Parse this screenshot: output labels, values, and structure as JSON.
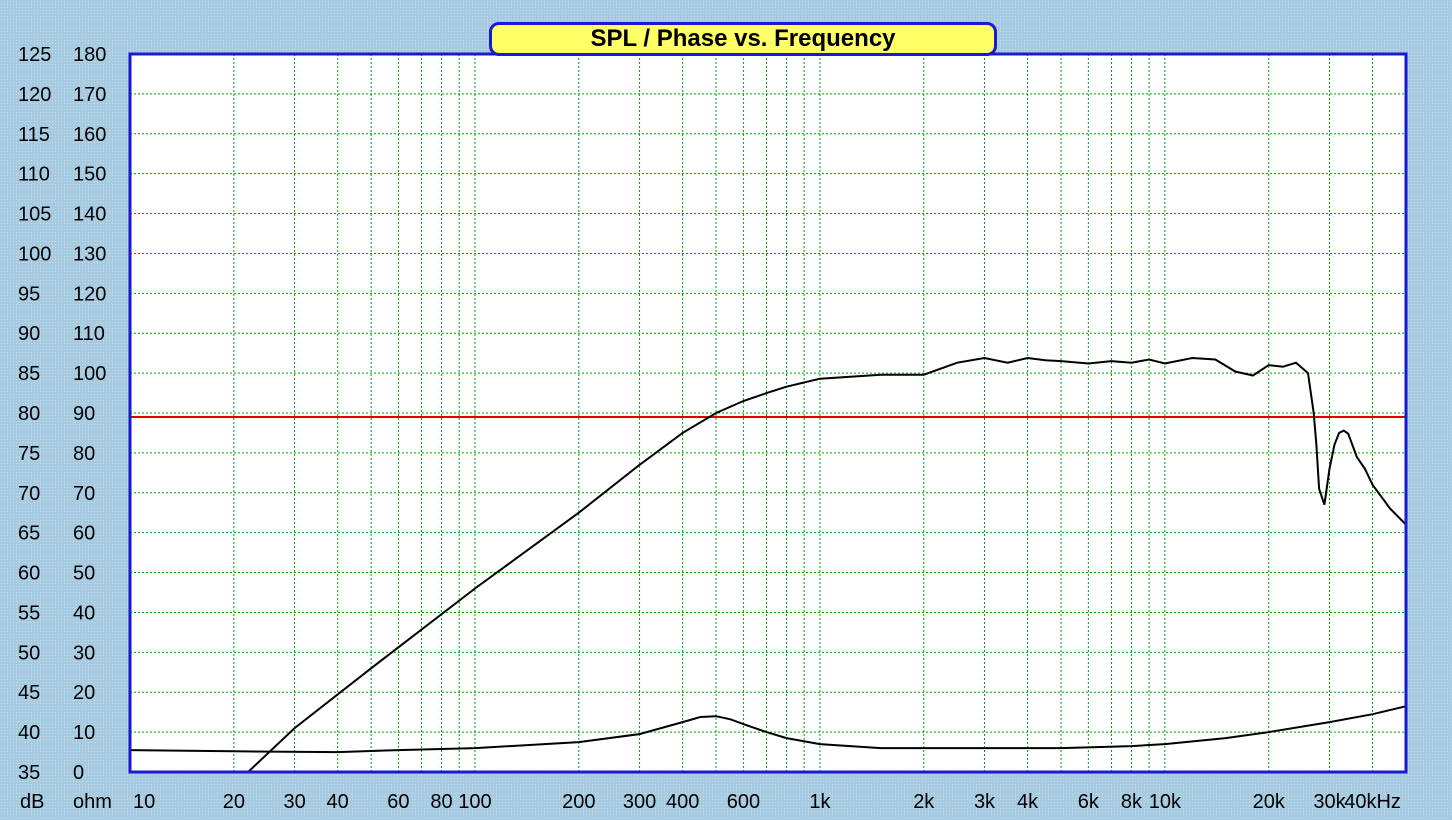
{
  "chart_data": {
    "type": "line",
    "title": "SPL / Phase vs. Frequency",
    "x_scale": "log",
    "xlim": [
      10,
      50000
    ],
    "x_unit_label": "kHz",
    "x_tick_labels": [
      {
        "v": 10,
        "t": "10"
      },
      {
        "v": 20,
        "t": "20"
      },
      {
        "v": 30,
        "t": "30"
      },
      {
        "v": 40,
        "t": "40"
      },
      {
        "v": 60,
        "t": "60"
      },
      {
        "v": 80,
        "t": "80"
      },
      {
        "v": 100,
        "t": "100"
      },
      {
        "v": 200,
        "t": "200"
      },
      {
        "v": 300,
        "t": "300"
      },
      {
        "v": 400,
        "t": "400"
      },
      {
        "v": 600,
        "t": "600"
      },
      {
        "v": 1000,
        "t": "1k"
      },
      {
        "v": 2000,
        "t": "2k"
      },
      {
        "v": 3000,
        "t": "3k"
      },
      {
        "v": 4000,
        "t": "4k"
      },
      {
        "v": 6000,
        "t": "6k"
      },
      {
        "v": 8000,
        "t": "8k"
      },
      {
        "v": 10000,
        "t": "10k"
      },
      {
        "v": 20000,
        "t": "20k"
      },
      {
        "v": 30000,
        "t": "30k"
      },
      {
        "v": 40000,
        "t": "40k"
      }
    ],
    "y_left": {
      "unit_label": "dB",
      "lim": [
        35,
        125
      ],
      "ticks": [
        125,
        120,
        115,
        110,
        105,
        100,
        95,
        90,
        85,
        80,
        75,
        70,
        65,
        60,
        55,
        50,
        45,
        40,
        35
      ]
    },
    "y_right": {
      "unit_label": "ohm",
      "lim": [
        0,
        180
      ],
      "ticks": [
        180,
        170,
        160,
        150,
        140,
        130,
        120,
        110,
        100,
        90,
        80,
        70,
        60,
        50,
        40,
        30,
        20,
        10,
        0
      ]
    },
    "grid": true,
    "reference_line_db": 79.5,
    "series": [
      {
        "axis": "dB",
        "x": [
          22,
          30,
          50,
          100,
          200,
          300,
          400,
          500,
          600,
          700,
          800,
          1000,
          1500,
          2000,
          2500,
          3000,
          3500,
          4000,
          4500,
          5000,
          6000,
          7000,
          8000,
          9000,
          10000,
          12000,
          14000,
          16000,
          18000,
          20000,
          22000,
          24000,
          26000,
          27000,
          27500,
          28000,
          29000,
          30000,
          31000,
          32000,
          33000,
          34000,
          36000,
          38000,
          40000,
          45000,
          50000
        ],
        "y": [
          35,
          40.5,
          48,
          58,
          67.5,
          73.5,
          77.5,
          80,
          81.5,
          82.5,
          83.3,
          84.3,
          84.8,
          84.8,
          86.3,
          86.9,
          86.3,
          86.9,
          86.6,
          86.5,
          86.2,
          86.5,
          86.3,
          86.7,
          86.2,
          86.9,
          86.7,
          85.2,
          84.7,
          86.0,
          85.8,
          86.3,
          85.0,
          80.0,
          76.0,
          70.5,
          68.5,
          73.0,
          76.0,
          77.5,
          77.8,
          77.4,
          74.5,
          73.0,
          71.0,
          68.0,
          66.0
        ]
      },
      {
        "axis": "ohm",
        "x": [
          10,
          20,
          40,
          60,
          100,
          200,
          300,
          400,
          450,
          500,
          550,
          600,
          700,
          800,
          1000,
          1500,
          2000,
          3000,
          5000,
          8000,
          10000,
          15000,
          20000,
          30000,
          40000,
          50000
        ],
        "y": [
          5.5,
          5.2,
          5.0,
          5.5,
          6.0,
          7.5,
          9.5,
          12.5,
          13.8,
          14.0,
          13.2,
          12.0,
          10.0,
          8.5,
          7.0,
          6.0,
          6.0,
          6.0,
          6.0,
          6.5,
          7.0,
          8.5,
          10.0,
          12.5,
          14.5,
          16.5
        ]
      }
    ]
  },
  "colors": {
    "frame": "#a6cae0",
    "plot_bg": "#ffffff",
    "plot_border": "#1a1ad0",
    "grid": "#00a000",
    "reference_line": "#e00000",
    "curve": "#000000",
    "title_bg": "#ffff66"
  }
}
